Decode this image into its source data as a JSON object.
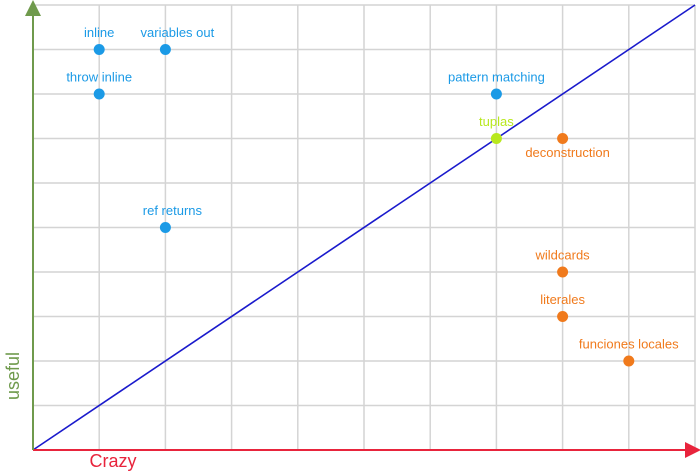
{
  "chart_data": {
    "type": "scatter",
    "x_label": "Crazy",
    "y_label": "useful",
    "labels": [
      "inline",
      "variables out",
      "throw inline",
      "ref returns",
      "pattern matching",
      "tuplas",
      "deconstruction",
      "wildcards",
      "literales",
      "funciones locales"
    ],
    "x": [
      1,
      2,
      1,
      2,
      7,
      7,
      8,
      8,
      8,
      9
    ],
    "values": [
      9,
      9,
      8,
      5,
      8,
      7,
      7,
      4,
      3,
      2
    ],
    "colors": [
      "#1b9ae6",
      "#1b9ae6",
      "#1b9ae6",
      "#1b9ae6",
      "#1b9ae6",
      "#b8e81e",
      "#f07a1c",
      "#f07a1c",
      "#f07a1c",
      "#f07a1c"
    ],
    "xlim": [
      0,
      10
    ],
    "ylim": [
      0,
      10
    ],
    "xticks": [
      0,
      1,
      2,
      3,
      4,
      5,
      6,
      7,
      8,
      9,
      10
    ],
    "yticks": [
      0,
      1,
      2,
      3,
      4,
      5,
      6,
      7,
      8,
      9,
      10
    ],
    "grid": true
  }
}
